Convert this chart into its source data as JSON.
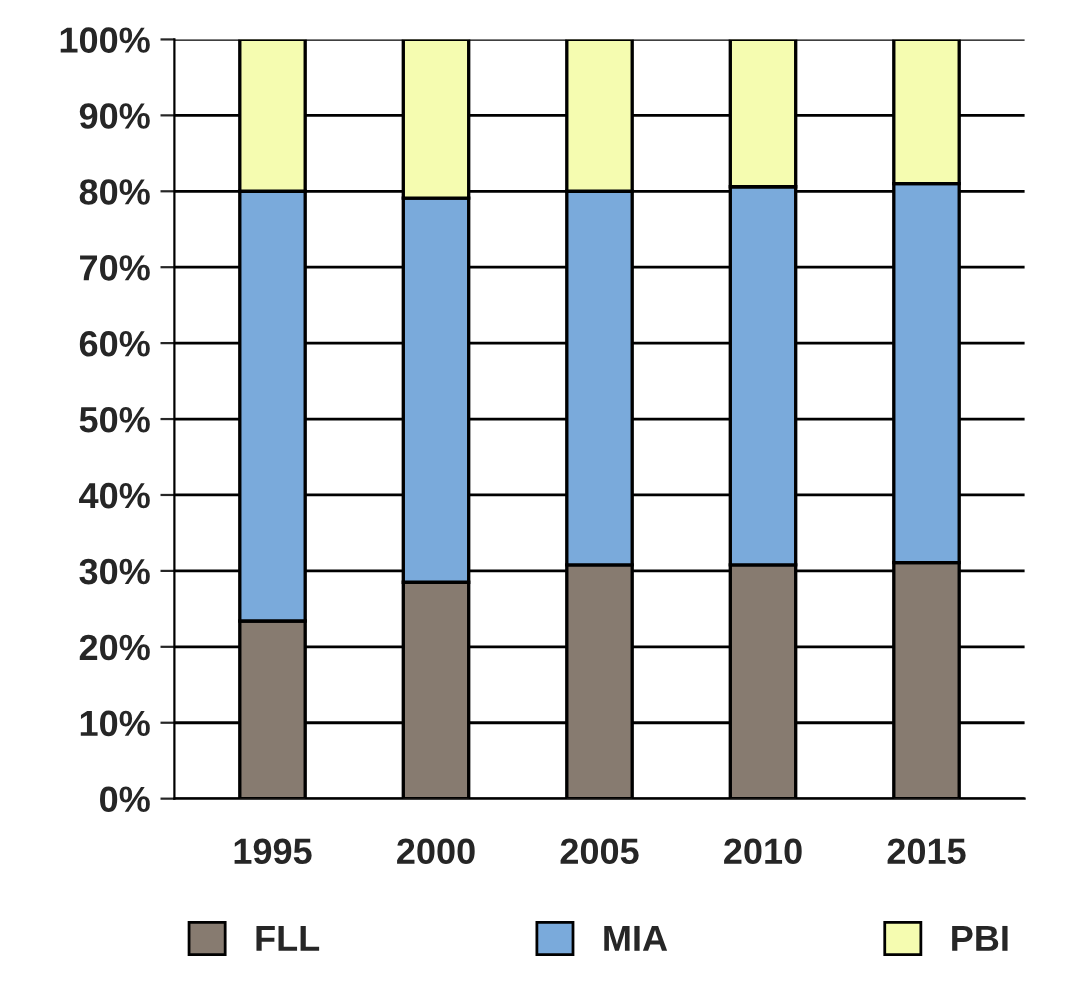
{
  "chart_data": {
    "type": "bar",
    "stacked": true,
    "categories": [
      "1995",
      "2000",
      "2005",
      "2010",
      "2015"
    ],
    "series": [
      {
        "name": "FLL",
        "color": "#877b70",
        "values": [
          23.4,
          28.5,
          30.8,
          30.8,
          31.1
        ]
      },
      {
        "name": "MIA",
        "color": "#7aaadb",
        "values": [
          56.6,
          50.6,
          49.2,
          49.8,
          49.9
        ]
      },
      {
        "name": "PBI",
        "color": "#f5fcb0",
        "values": [
          20,
          20.9,
          20,
          19.4,
          19
        ]
      }
    ],
    "ylim": [
      0,
      100
    ],
    "yticks": [
      {
        "value": 0,
        "label": "0%"
      },
      {
        "value": 10,
        "label": "10%"
      },
      {
        "value": 20,
        "label": "20%"
      },
      {
        "value": 30,
        "label": "30%"
      },
      {
        "value": 40,
        "label": "40%"
      },
      {
        "value": 50,
        "label": "50%"
      },
      {
        "value": 60,
        "label": "60%"
      },
      {
        "value": 70,
        "label": "70%"
      },
      {
        "value": 80,
        "label": "80%"
      },
      {
        "value": 90,
        "label": "90%"
      },
      {
        "value": 100,
        "label": "100%"
      }
    ],
    "grid": "y",
    "legend": "bottom"
  }
}
